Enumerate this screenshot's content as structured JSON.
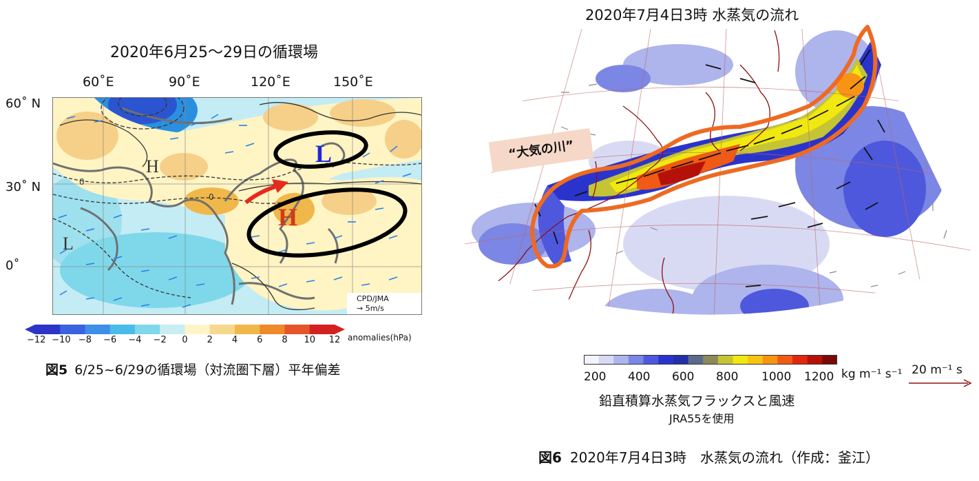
{
  "left_figure": {
    "title": "2020年6月25〜29日の循環場",
    "lon_labels": [
      "60˚E",
      "90˚E",
      "120˚E",
      "150˚E"
    ],
    "lat_labels": [
      "60˚ N",
      "30˚ N",
      "0˚"
    ],
    "map_labels": {
      "high_center": "H",
      "low_north": "L",
      "low_south": "L",
      "high_weak": "H",
      "contour_zero_1": "0",
      "contour_zero_2": "0"
    },
    "credit": "CPD/JMA",
    "ref_vector": "5m/s",
    "colorbar_ticks": [
      "−12",
      "−10",
      "−8",
      "−6",
      "−4",
      "−2",
      "0",
      "2",
      "4",
      "6",
      "8",
      "10",
      "12"
    ],
    "colorbar_unit": "anomalies(hPa)",
    "caption_label": "図5",
    "caption_text": "6/25~6/29の循環場（対流圏下層）平年偏差"
  },
  "right_figure": {
    "title": "2020年7月4日3時 水蒸気の流れ",
    "callout": "“大気の川”",
    "colorbar_ticks": [
      "200",
      "400",
      "600",
      "800",
      "1000",
      "1200"
    ],
    "colorbar_unit": "kg m⁻¹ s⁻¹",
    "ref_vector": "20 m⁻¹ s",
    "subtitle": "鉛直積算水蒸気フラックスと風速",
    "source": "JRA55を使用",
    "caption_label": "図6",
    "caption_text": "2020年7月4日3時　水蒸気の流れ（作成：釜江）"
  },
  "colors": {
    "cb1": [
      "#2b35c8",
      "#3a63e0",
      "#3e8fe8",
      "#4bbbe8",
      "#7fd8ea",
      "#c8eef4",
      "#fff4c8",
      "#f6d88c",
      "#f0b84a",
      "#ee8a2a",
      "#e4552a",
      "#d42020"
    ],
    "cb2": [
      "#f4f4fc",
      "#d8daf4",
      "#aeb4ec",
      "#7c86e4",
      "#4e58dc",
      "#2a34cc",
      "#2230a8",
      "#5a6a8a",
      "#8a8a5a",
      "#c4c434",
      "#f0e810",
      "#f8c414",
      "#f89414",
      "#f05a14",
      "#e02810",
      "#b41208",
      "#7a0a08"
    ],
    "river_outline": "#ee6a22",
    "ellipse": "#000000",
    "high_red": "#d23a18",
    "low_blue": "#1e28d8"
  }
}
